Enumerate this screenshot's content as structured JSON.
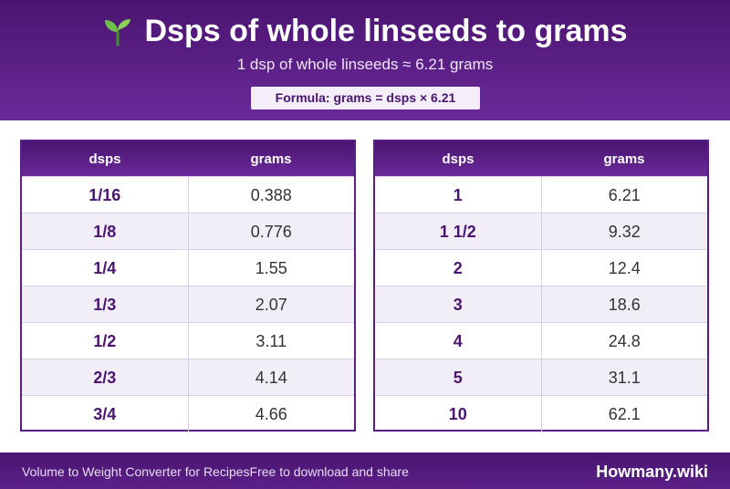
{
  "header": {
    "title": "Dsps of whole linseeds to grams",
    "icon": "seedling-icon",
    "subtitle": "1 dsp of whole linseeds ≈ 6.21 grams",
    "formula": "Formula: grams = dsps × 6.21"
  },
  "tables": {
    "columns": {
      "dsps": "dsps",
      "grams": "grams"
    },
    "left": [
      {
        "dsps": "1/16",
        "grams": "0.388"
      },
      {
        "dsps": "1/8",
        "grams": "0.776"
      },
      {
        "dsps": "1/4",
        "grams": "1.55"
      },
      {
        "dsps": "1/3",
        "grams": "2.07"
      },
      {
        "dsps": "1/2",
        "grams": "3.11"
      },
      {
        "dsps": "2/3",
        "grams": "4.14"
      },
      {
        "dsps": "3/4",
        "grams": "4.66"
      }
    ],
    "right": [
      {
        "dsps": "1",
        "grams": "6.21"
      },
      {
        "dsps": "1 1/2",
        "grams": "9.32"
      },
      {
        "dsps": "2",
        "grams": "12.4"
      },
      {
        "dsps": "3",
        "grams": "18.6"
      },
      {
        "dsps": "4",
        "grams": "24.8"
      },
      {
        "dsps": "5",
        "grams": "31.1"
      },
      {
        "dsps": "10",
        "grams": "62.1"
      }
    ]
  },
  "footer": {
    "left_text": "Volume to Weight Converter for RecipesFree to download and share",
    "brand": "Howmany.wiki"
  },
  "colors": {
    "primary": "#4a1470",
    "accent": "#6a2a99",
    "row_alt": "#f2eef8"
  }
}
